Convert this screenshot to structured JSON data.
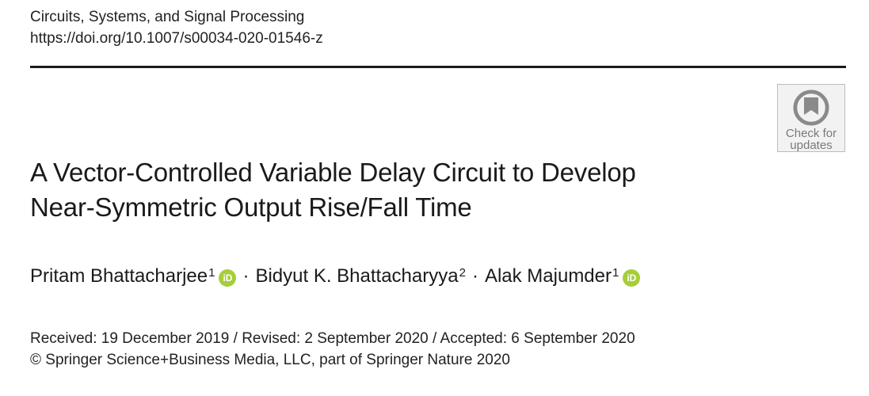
{
  "journal": {
    "name": "Circuits, Systems, and Signal Processing",
    "doi": "https://doi.org/10.1007/s00034-020-01546-z"
  },
  "badge": {
    "label": "Check for\nupdates",
    "icon": "check-for-updates-icon"
  },
  "title": {
    "line1": "A Vector-Controlled Variable Delay Circuit to Develop",
    "line2": "Near-Symmetric Output Rise/Fall Time"
  },
  "authors": [
    {
      "name": "Pritam Bhattacharjee",
      "affiliation": "1",
      "orcid": true
    },
    {
      "name": "Bidyut K. Bhattacharyya",
      "affiliation": "2",
      "orcid": false
    },
    {
      "name": "Alak Majumder",
      "affiliation": "1",
      "orcid": true
    }
  ],
  "orcid_label": "iD",
  "separator": "·",
  "dates": {
    "history": "Received: 19 December 2019 / Revised: 2 September 2020 / Accepted: 6 September 2020",
    "copyright": "© Springer Science+Business Media, LLC, part of Springer Nature 2020"
  },
  "colors": {
    "orcid_green": "#a6ce39",
    "badge_gray": "#7a7a7a"
  }
}
